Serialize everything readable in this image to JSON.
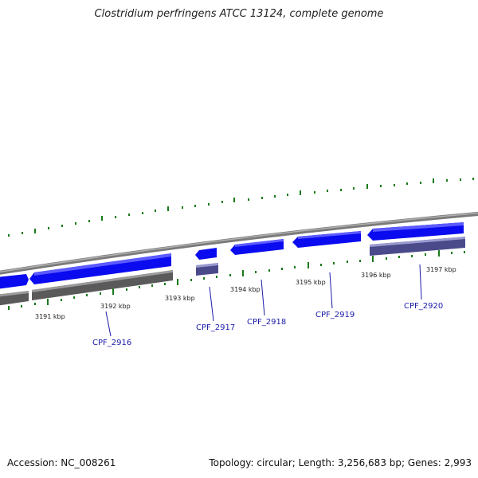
{
  "title": "Clostridium perfringens ATCC 13124, complete genome",
  "footer": {
    "accession": "Accession: NC_008261",
    "summary": "Topology: circular; Length: 3,256,683 bp; Genes: 2,993"
  },
  "scale_labels": [
    "3191 kbp",
    "3192 kbp",
    "3193 kbp",
    "3194 kbp",
    "3195 kbp",
    "3196 kbp",
    "3197 kbp"
  ],
  "gene_labels": [
    "CPF_2916",
    "CPF_2917",
    "CPF_2918",
    "CPF_2919",
    "CPF_2920"
  ],
  "colors": {
    "backbone": "#8a8a8a",
    "gene_fill": "#0b0bf0",
    "shadow_fill": "#5a5a5a",
    "shadow_gene": "#4a4a8a",
    "tick": "#1a7a1a",
    "label_line": "#1a1aa8"
  }
}
